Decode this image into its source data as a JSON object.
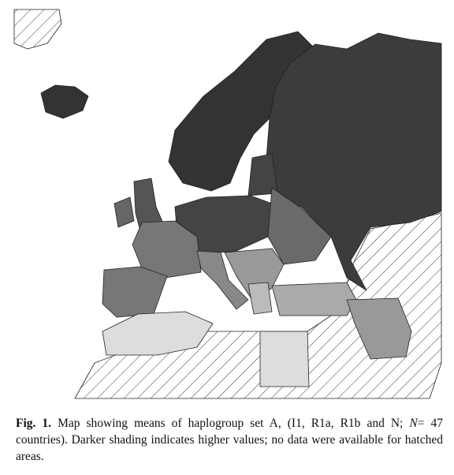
{
  "figure": {
    "label": "Fig. 1.",
    "caption_start": "Map showing means of haplogroup set A, (I1, R1a, R1b and N;",
    "caption_symbol": "N",
    "caption_end": "= 47 countries). Darker shading indicates higher values; no data were available for hatched areas."
  }
}
